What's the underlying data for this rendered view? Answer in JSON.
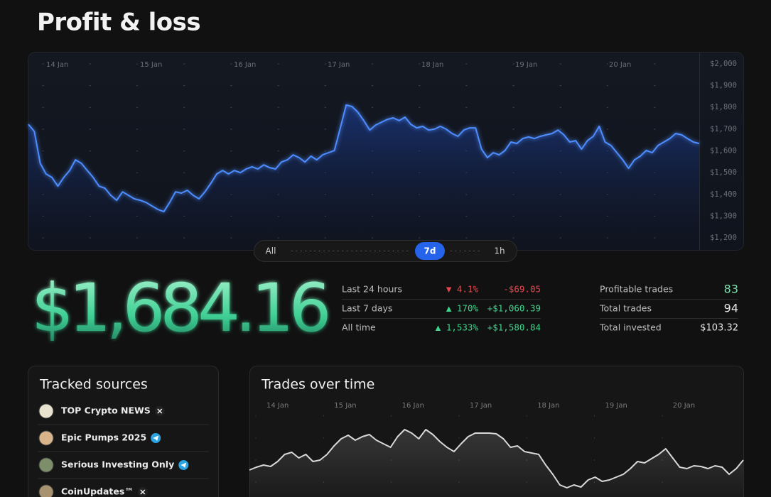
{
  "header": {
    "title": "Profit & loss"
  },
  "pnl_chart": {
    "type": "line",
    "categories": [
      "14 Jan",
      "15 Jan",
      "16 Jan",
      "17 Jan",
      "18 Jan",
      "19 Jan",
      "20 Jan"
    ],
    "values": [
      1722,
      1690,
      1543,
      1494,
      1478,
      1438,
      1478,
      1510,
      1559,
      1543,
      1510,
      1478,
      1438,
      1429,
      1396,
      1373,
      1412,
      1396,
      1380,
      1373,
      1363,
      1347,
      1331,
      1321,
      1363,
      1412,
      1406,
      1419,
      1396,
      1380,
      1412,
      1451,
      1494,
      1510,
      1494,
      1510,
      1500,
      1517,
      1527,
      1517,
      1536,
      1523,
      1517,
      1549,
      1559,
      1582,
      1569,
      1549,
      1576,
      1559,
      1582,
      1592,
      1602,
      1706,
      1811,
      1804,
      1778,
      1739,
      1696,
      1719,
      1732,
      1745,
      1752,
      1739,
      1755,
      1722,
      1706,
      1713,
      1696,
      1700,
      1713,
      1700,
      1680,
      1667,
      1696,
      1706,
      1706,
      1608,
      1569,
      1592,
      1582,
      1602,
      1641,
      1634,
      1657,
      1664,
      1657,
      1667,
      1674,
      1680,
      1696,
      1674,
      1641,
      1647,
      1608,
      1647,
      1667,
      1713,
      1641,
      1625,
      1592,
      1559,
      1520,
      1559,
      1576,
      1602,
      1592,
      1625,
      1641,
      1657,
      1680,
      1674,
      1657,
      1641,
      1634
    ],
    "color": "#4d8dff",
    "ylim": [
      1145,
      2052
    ],
    "yticks": [
      {
        "value": 2000,
        "label": "$2,000"
      },
      {
        "value": 1900,
        "label": "$1,900"
      },
      {
        "value": 1800,
        "label": "$1,800"
      },
      {
        "value": 1700,
        "label": "$1,700"
      },
      {
        "value": 1600,
        "label": "$1,600"
      },
      {
        "value": 1500,
        "label": "$1,500"
      },
      {
        "value": 1400,
        "label": "$1,400"
      },
      {
        "value": 1300,
        "label": "$1,300"
      },
      {
        "value": 1200,
        "label": "$1,200"
      }
    ],
    "grid": true
  },
  "range_selector": {
    "options": [
      "All",
      "7d",
      "1h"
    ],
    "active": 1
  },
  "balance": {
    "value": "$1,684.16"
  },
  "stats": {
    "rows": [
      {
        "label": "Last 24 hours",
        "change": "▼ 4.1%",
        "amount": "-$69.05",
        "color": "#e5484d"
      },
      {
        "label": "Last 7 days",
        "change": "▲ 170%",
        "amount": "+$1,060.39",
        "color": "#3dd68c"
      },
      {
        "label": "All time",
        "change": "▲ 1,533%",
        "amount": "+$1,580.84",
        "color": "#3dd68c"
      }
    ]
  },
  "totals": {
    "rows": [
      {
        "label": "Profitable trades",
        "value": 83,
        "color": "#7fe0b0"
      },
      {
        "label": "Total trades",
        "value": 94,
        "color": "#e6e6e6"
      },
      {
        "label": "Total invested",
        "value": "$103.32",
        "color": "#e6e6e6"
      }
    ]
  },
  "sources": {
    "title": "Tracked sources",
    "items": [
      "TOP Crypto NEWS",
      "Epic Pumps 2025",
      "Serious Investing Only",
      "CoinUpdates™"
    ]
  },
  "trades_chart": {
    "type": "line",
    "title": "Trades over time",
    "categories": [
      "14 Jan",
      "15 Jan",
      "16 Jan",
      "17 Jan",
      "18 Jan",
      "19 Jan",
      "20 Jan"
    ],
    "values": [
      38,
      42,
      45,
      43,
      50,
      60,
      63,
      55,
      60,
      50,
      52,
      60,
      72,
      82,
      87,
      80,
      85,
      88,
      80,
      75,
      70,
      85,
      95,
      90,
      82,
      95,
      88,
      78,
      70,
      64,
      75,
      85,
      90,
      90,
      90,
      89,
      82,
      70,
      72,
      64,
      62,
      60,
      45,
      32,
      17,
      13,
      17,
      14,
      24,
      28,
      22,
      24,
      28,
      32,
      40,
      50,
      48,
      54,
      60,
      68,
      55,
      42,
      40,
      44,
      43,
      40,
      44,
      42,
      32,
      40,
      52
    ],
    "color": "#d8d8d8",
    "ylim": [
      0,
      110
    ]
  }
}
